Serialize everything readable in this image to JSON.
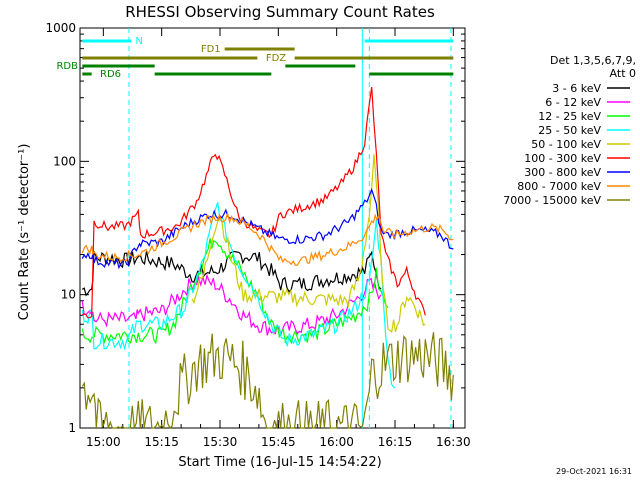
{
  "chart_data": {
    "type": "line",
    "title": "RHESSI Observing Summary Count Rates",
    "xlabel": "Start Time (16-Jul-15 14:54:22)",
    "ylabel": "Count Rate (s⁻¹ detector⁻¹)",
    "yscale": "log",
    "ylim": [
      1,
      1000
    ],
    "xlim_minutes": [
      14.9,
      16.55
    ],
    "x_ticks": [
      {
        "label": "15:00",
        "t": 15.0
      },
      {
        "label": "15:15",
        "t": 15.25
      },
      {
        "label": "15:30",
        "t": 15.5
      },
      {
        "label": "15:45",
        "t": 15.75
      },
      {
        "label": "16:00",
        "t": 16.0
      },
      {
        "label": "16:15",
        "t": 16.25
      },
      {
        "label": "16:30",
        "t": 16.5
      }
    ],
    "y_ticks": [
      {
        "label": "1",
        "v": 1
      },
      {
        "label": "10",
        "v": 10
      },
      {
        "label": "100",
        "v": 100
      },
      {
        "label": "1000",
        "v": 1000
      }
    ],
    "legend_header": [
      "Det 1,3,5,6,7,9,",
      "Att 0"
    ],
    "series": [
      {
        "name": "3 - 6 keV",
        "color": "#000000",
        "x": [
          14.91,
          14.95,
          14.96,
          15.02,
          15.1,
          15.15,
          15.22,
          15.3,
          15.38,
          15.48,
          15.58,
          15.66,
          15.72,
          15.76,
          15.85,
          15.95,
          16.05,
          16.12,
          16.15,
          16.17,
          16.19
        ],
        "y": [
          11,
          11,
          19,
          19,
          18,
          19,
          18,
          17,
          14,
          15,
          20,
          19,
          15,
          12,
          12,
          13,
          14,
          15,
          20,
          15,
          11
        ]
      },
      {
        "name": "6 - 12 keV",
        "color": "#ff00ff",
        "x": [
          14.91,
          14.95,
          14.96,
          15.05,
          15.14,
          15.15,
          15.25,
          15.3,
          15.35,
          15.4,
          15.48,
          15.55,
          15.6,
          15.66,
          15.72,
          15.78,
          15.9,
          16.0,
          16.08,
          16.14,
          16.17,
          16.19
        ],
        "y": [
          8,
          8,
          6.5,
          6.5,
          6.5,
          7,
          7.5,
          9,
          11,
          13,
          12,
          9,
          7,
          6,
          5.5,
          5.5,
          6,
          7,
          9,
          12,
          11,
          10
        ]
      },
      {
        "name": "12 - 25 keV",
        "color": "#00ff00",
        "x": [
          14.91,
          14.96,
          15.05,
          15.15,
          15.25,
          15.3,
          15.35,
          15.4,
          15.45,
          15.48,
          15.52,
          15.58,
          15.66,
          15.72,
          15.78,
          15.9,
          16.0,
          16.08,
          16.14,
          16.17,
          16.19,
          16.22
        ],
        "y": [
          5,
          5,
          5,
          5,
          5,
          6,
          9,
          14,
          22,
          28,
          22,
          16,
          10,
          6,
          5,
          5,
          6,
          7,
          9,
          14,
          10,
          8
        ]
      },
      {
        "name": "25 - 50 keV",
        "color": "#00ffff",
        "x": [
          14.91,
          14.95,
          14.96,
          15.1,
          15.15,
          15.25,
          15.35,
          15.42,
          15.47,
          15.49,
          15.52,
          15.58,
          15.66,
          15.72,
          15.78,
          15.9,
          16.0,
          16.08,
          16.14,
          16.17,
          16.19,
          16.22,
          16.25
        ],
        "y": [
          7,
          7,
          4.5,
          4.5,
          6,
          6,
          8,
          16,
          35,
          48,
          30,
          17,
          10,
          6,
          4.5,
          5,
          6,
          8,
          12,
          35,
          18,
          3,
          2
        ]
      },
      {
        "name": "50 - 100 keV",
        "color": "#cccc00",
        "x": [
          15.38,
          15.43,
          15.47,
          15.5,
          15.55,
          15.6,
          16.05,
          16.1,
          16.14,
          16.16,
          16.18,
          16.2,
          16.22,
          16.26,
          16.3,
          16.34,
          16.38
        ],
        "y": [
          9,
          14,
          30,
          40,
          18,
          10,
          9,
          14,
          40,
          100,
          40,
          10,
          6,
          6,
          10,
          8,
          6
        ]
      },
      {
        "name": "100 - 300 keV",
        "color": "#ff0000",
        "x": [
          14.91,
          14.95,
          14.96,
          15.02,
          15.1,
          15.15,
          15.16,
          15.25,
          15.32,
          15.4,
          15.45,
          15.48,
          15.52,
          15.58,
          15.66,
          15.72,
          15.76,
          15.85,
          15.95,
          16.02,
          16.08,
          16.12,
          16.15,
          16.17,
          16.19,
          16.21,
          16.26,
          16.3,
          16.34,
          16.38
        ],
        "y": [
          7,
          7,
          35,
          32,
          33,
          40,
          28,
          30,
          33,
          50,
          85,
          120,
          80,
          38,
          30,
          28,
          40,
          45,
          52,
          68,
          95,
          140,
          350,
          110,
          30,
          20,
          12,
          15,
          10,
          7
        ]
      },
      {
        "name": "300 - 800 keV",
        "color": "#0000ff",
        "x": [
          14.91,
          14.95,
          14.96,
          15.05,
          15.1,
          15.15,
          15.16,
          15.25,
          15.35,
          15.45,
          15.55,
          15.65,
          15.72,
          15.76,
          15.85,
          15.95,
          16.05,
          16.12,
          16.15,
          16.17,
          16.19,
          16.22,
          16.3,
          16.38,
          16.45,
          16.5
        ],
        "y": [
          20,
          20,
          18,
          17,
          17,
          24,
          24,
          25,
          33,
          40,
          40,
          32,
          28,
          26,
          26,
          28,
          35,
          48,
          60,
          45,
          30,
          28,
          30,
          30,
          28,
          22
        ]
      },
      {
        "name": "800 - 7000 keV",
        "color": "#ff8800",
        "x": [
          14.91,
          14.95,
          14.96,
          15.05,
          15.15,
          15.2,
          15.3,
          15.4,
          15.48,
          15.55,
          15.62,
          15.68,
          15.72,
          15.76,
          15.85,
          15.95,
          16.05,
          16.12,
          16.15,
          16.18,
          16.2,
          16.25,
          16.32,
          16.4,
          16.46,
          16.5
        ],
        "y": [
          22,
          22,
          20,
          19,
          20,
          22,
          27,
          34,
          38,
          38,
          33,
          27,
          22,
          18,
          18,
          20,
          23,
          28,
          35,
          40,
          30,
          28,
          30,
          32,
          30,
          26
        ]
      },
      {
        "name": "7000 - 15000 keV",
        "color": "#808000",
        "x": [
          14.91,
          14.96,
          14.97,
          15.15,
          15.25,
          15.33,
          15.4,
          15.5,
          15.58,
          15.66,
          15.7,
          16.05,
          16.12,
          16.15,
          16.2,
          16.28,
          16.38,
          16.45,
          16.5
        ],
        "y": [
          2,
          2,
          1,
          1,
          1,
          2,
          3,
          3.5,
          3,
          2,
          1,
          1,
          1,
          2.5,
          3,
          3.5,
          3.5,
          3,
          2.5
        ]
      }
    ],
    "annotations": [
      {
        "label": "N",
        "color": "#00ffff",
        "t_start": 14.91,
        "t_end": 15.12,
        "bar2_start": 16.12,
        "bar2_end": 16.5
      },
      {
        "label": "FD1",
        "color": "#808000",
        "t_start": 15.5,
        "t_end": 15.8
      },
      {
        "label": "FDZ",
        "color": "#808000",
        "t_start": 14.91,
        "t_end": 16.5
      },
      {
        "label": "RDB",
        "color": "#008000",
        "t_start": 14.91,
        "t_end": 15.18
      },
      {
        "label": "RD6",
        "color": "#008000",
        "t_start": 14.91,
        "t_end": 16.5
      }
    ],
    "vertical_markers": [
      15.11,
      16.11,
      16.14,
      16.49
    ],
    "footer_date": "29-Oct-2021 16:31"
  }
}
